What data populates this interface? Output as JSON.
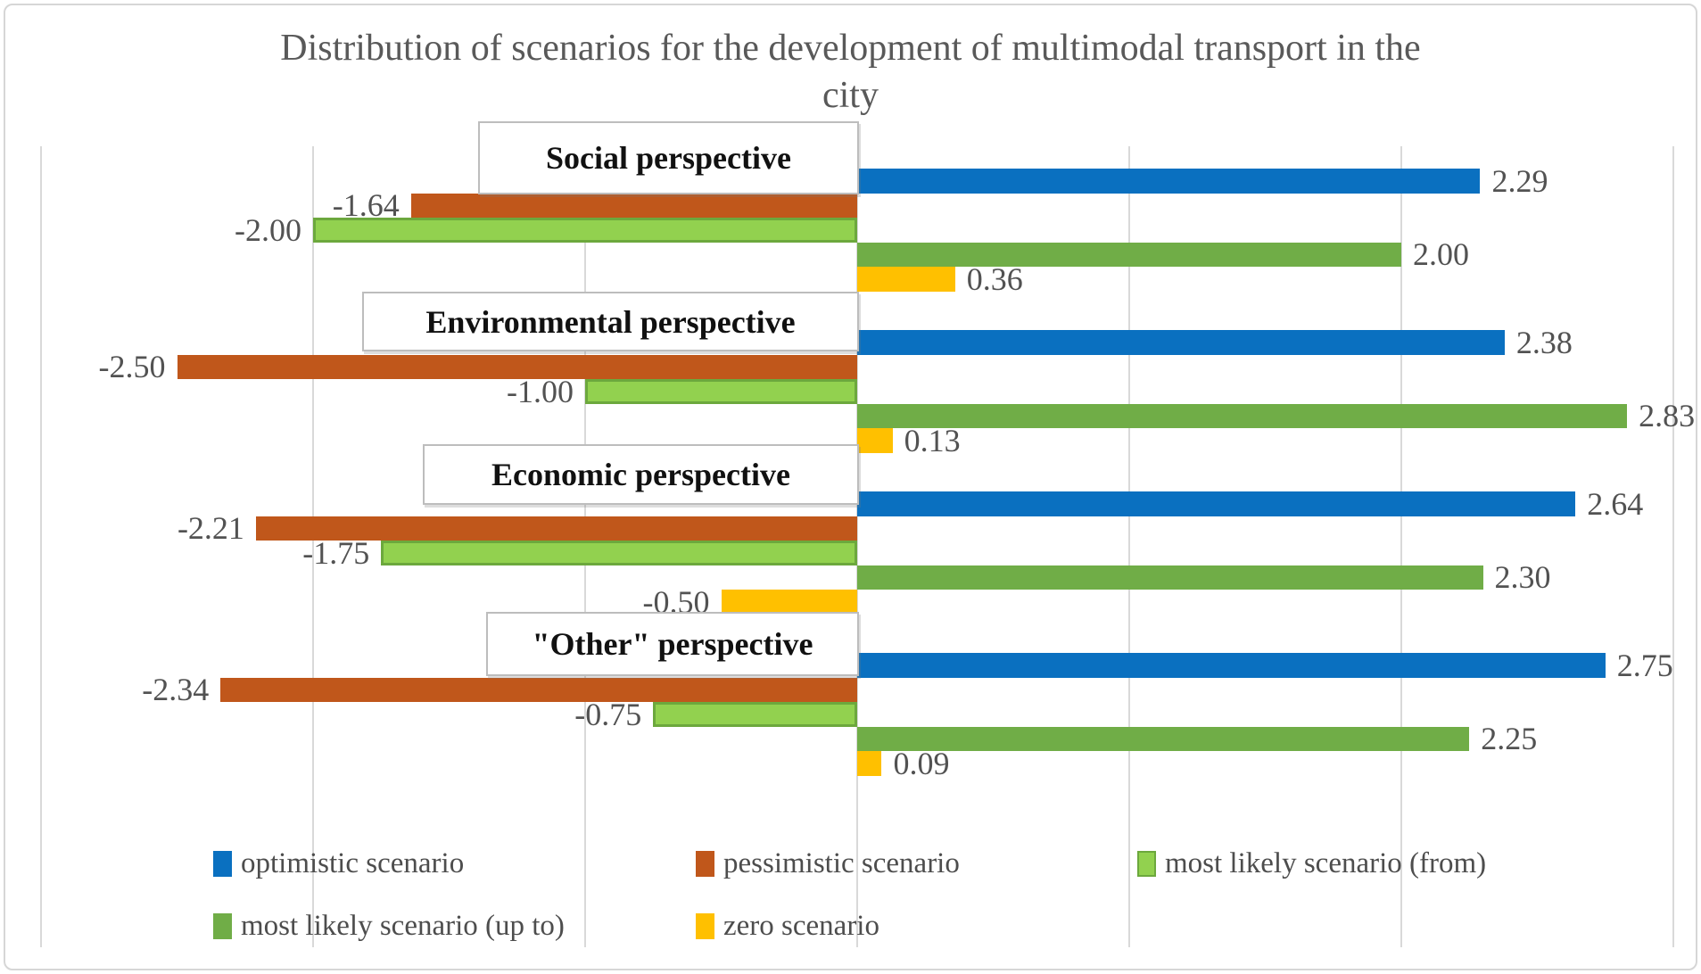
{
  "title": "Distribution of scenarios for the development of multimodal transport in the city",
  "chart_data": {
    "type": "bar",
    "orientation": "horizontal",
    "title": "Distribution of scenarios for the development of multimodal transport in the city",
    "categories": [
      "Social perspective",
      "Environmental perspective",
      "Economic perspective",
      "\"Other\" perspective"
    ],
    "series": [
      {
        "name": "optimistic scenario",
        "color": "#0a70c0",
        "values": [
          2.29,
          2.38,
          2.64,
          2.75
        ]
      },
      {
        "name": "pessimistic scenario",
        "color": "#c0571b",
        "values": [
          -1.64,
          -2.5,
          -2.21,
          -2.34
        ]
      },
      {
        "name": "most likely scenario (from)",
        "color": "#92d14f",
        "border_color": "#6ca83d",
        "values": [
          -2.0,
          -1.0,
          -1.75,
          -0.75
        ]
      },
      {
        "name": "most likely scenario (up to)",
        "color": "#70ad47",
        "values": [
          2.0,
          2.83,
          2.3,
          2.25
        ]
      },
      {
        "name": "zero scenario",
        "color": "#ffc000",
        "values": [
          0.36,
          0.13,
          -0.5,
          0.09
        ]
      }
    ],
    "xlim": [
      -3,
      3
    ],
    "gridline_step": 1,
    "grid": true,
    "gridline_color": "#d9d9d9",
    "value_label_format": "two_decimals",
    "value_label_color": "#525252",
    "legend_position": "bottom",
    "legend_rows": [
      [
        "optimistic scenario",
        "pessimistic scenario",
        "most likely scenario (from)"
      ],
      [
        "most likely scenario (up to)",
        "zero scenario"
      ]
    ]
  }
}
